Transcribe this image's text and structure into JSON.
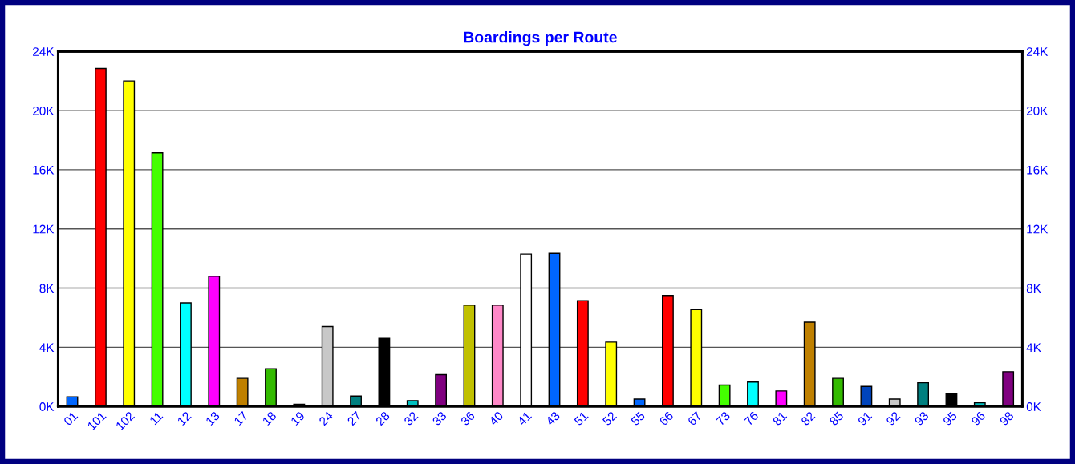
{
  "chart_data": {
    "type": "bar",
    "title": "Boardings per Route",
    "categories": [
      "01",
      "101",
      "102",
      "11",
      "12",
      "13",
      "17",
      "18",
      "19",
      "24",
      "27",
      "28",
      "32",
      "33",
      "36",
      "40",
      "41",
      "43",
      "51",
      "52",
      "55",
      "66",
      "67",
      "73",
      "76",
      "81",
      "82",
      "85",
      "91",
      "92",
      "93",
      "95",
      "96",
      "98"
    ],
    "values": [
      0.65,
      22.85,
      22.0,
      17.15,
      7.0,
      8.8,
      1.9,
      2.55,
      0.15,
      5.4,
      0.7,
      4.6,
      0.4,
      2.15,
      6.85,
      6.85,
      10.3,
      10.35,
      7.15,
      4.35,
      0.5,
      7.5,
      6.55,
      1.45,
      1.65,
      1.05,
      5.7,
      1.9,
      1.35,
      0.5,
      1.6,
      0.9,
      0.25,
      2.35
    ],
    "colors": [
      "#0066ff",
      "#ff0000",
      "#ffff00",
      "#44ff00",
      "#00ffff",
      "#ff00ff",
      "#bf8000",
      "#33bb00",
      "#0044bb",
      "#c8c8c8",
      "#008080",
      "#000000",
      "#00c0c0",
      "#800080",
      "#c0c000",
      "#ff88c8",
      "#ffffff",
      "#0066ff",
      "#ff0000",
      "#ffff00",
      "#0066ff",
      "#ff0000",
      "#ffff00",
      "#44ff00",
      "#00ffff",
      "#ff00ff",
      "#bf8000",
      "#33bb00",
      "#0044bb",
      "#c8c8c8",
      "#008080",
      "#000000",
      "#00c0c0",
      "#800080"
    ],
    "ylim": [
      0,
      24
    ],
    "yticks": [
      {
        "value": 0,
        "label": "0K"
      },
      {
        "value": 4,
        "label": "4K"
      },
      {
        "value": 8,
        "label": "8K"
      },
      {
        "value": 12,
        "label": "12K"
      },
      {
        "value": 16,
        "label": "16K"
      },
      {
        "value": 20,
        "label": "20K"
      },
      {
        "value": 24,
        "label": "24K"
      }
    ],
    "y2lim": [
      0,
      24
    ],
    "y2ticks": [
      {
        "value": 0,
        "label": "0K"
      },
      {
        "value": 4,
        "label": "4K"
      },
      {
        "value": 8,
        "label": "8K"
      },
      {
        "value": 12,
        "label": "12K"
      },
      {
        "value": 16,
        "label": "16K"
      },
      {
        "value": 20,
        "label": "20K"
      },
      {
        "value": 24,
        "label": "24K"
      }
    ],
    "grid": "y"
  }
}
